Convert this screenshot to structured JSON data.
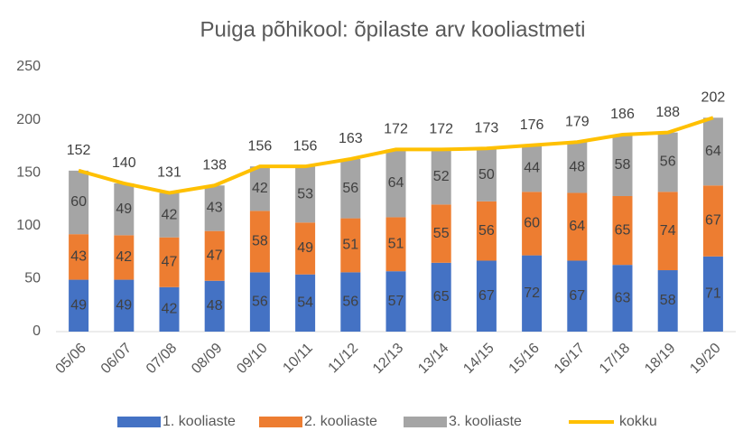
{
  "chart_data": {
    "type": "bar",
    "stacked": true,
    "title": "Puiga põhikool: õpilaste arv kooliastmeti",
    "categories": [
      "05/06",
      "06/07",
      "07/08",
      "08/09",
      "09/10",
      "10/11",
      "11/12",
      "12/13",
      "13/14",
      "14/15",
      "15/16",
      "16/17",
      "17/18",
      "18/19",
      "19/20"
    ],
    "series": [
      {
        "name": "1. kooliaste",
        "color": "#4472c4",
        "values": [
          49,
          49,
          42,
          48,
          56,
          54,
          56,
          57,
          65,
          67,
          72,
          67,
          63,
          58,
          71
        ]
      },
      {
        "name": "2. kooliaste",
        "color": "#ed7d31",
        "values": [
          43,
          42,
          47,
          47,
          58,
          49,
          51,
          51,
          55,
          56,
          60,
          64,
          65,
          74,
          67
        ]
      },
      {
        "name": "3. kooliaste",
        "color": "#a5a5a5",
        "values": [
          60,
          49,
          42,
          43,
          42,
          53,
          56,
          64,
          52,
          50,
          44,
          48,
          58,
          56,
          64
        ]
      },
      {
        "name": "kokku",
        "type": "line",
        "color": "#ffc000",
        "values": [
          152,
          140,
          131,
          138,
          156,
          156,
          163,
          172,
          172,
          173,
          176,
          179,
          186,
          188,
          202
        ]
      }
    ],
    "ylim": [
      0,
      250
    ],
    "yticks": [
      0,
      50,
      100,
      150,
      200,
      250
    ],
    "grid": false,
    "legend": "bottom"
  }
}
